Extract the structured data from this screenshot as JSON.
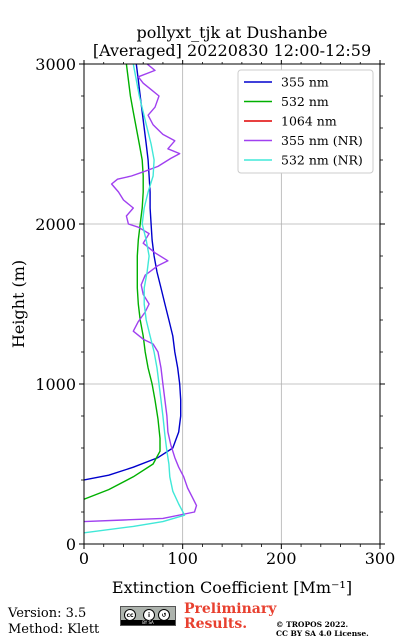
{
  "chart_data": {
    "type": "line",
    "title_lines": [
      "pollyxt_tjk at Dushanbe",
      "[Averaged] 20220830 12:00-12:59"
    ],
    "xlabel": "Extinction Coefficient [Mm⁻¹]",
    "ylabel": "Height (m)",
    "xlim": [
      0,
      300
    ],
    "ylim": [
      0,
      3000
    ],
    "xticks": [
      "0",
      "100",
      "200",
      "300"
    ],
    "yticks": [
      "0",
      "1000",
      "2000",
      "3000"
    ],
    "grid": true,
    "legend_position": "top-right",
    "series": [
      {
        "name": "355 nm",
        "color": "#0000cd",
        "points": [
          [
            0,
            400
          ],
          [
            25,
            430
          ],
          [
            50,
            480
          ],
          [
            75,
            540
          ],
          [
            90,
            600
          ],
          [
            96,
            700
          ],
          [
            98,
            800
          ],
          [
            98,
            900
          ],
          [
            97,
            1000
          ],
          [
            95,
            1100
          ],
          [
            92,
            1200
          ],
          [
            90,
            1300
          ],
          [
            86,
            1400
          ],
          [
            82,
            1500
          ],
          [
            78,
            1600
          ],
          [
            74,
            1700
          ],
          [
            71,
            1800
          ],
          [
            69,
            1900
          ],
          [
            68,
            2000
          ],
          [
            67,
            2100
          ],
          [
            67,
            2200
          ],
          [
            66,
            2300
          ],
          [
            65,
            2400
          ],
          [
            63,
            2500
          ],
          [
            61,
            2600
          ],
          [
            59,
            2700
          ],
          [
            57,
            2800
          ],
          [
            55,
            2900
          ],
          [
            53,
            3000
          ]
        ]
      },
      {
        "name": "532 nm",
        "color": "#00b000",
        "points": [
          [
            0,
            280
          ],
          [
            25,
            340
          ],
          [
            50,
            420
          ],
          [
            70,
            500
          ],
          [
            77,
            580
          ],
          [
            77,
            660
          ],
          [
            75,
            780
          ],
          [
            72,
            900
          ],
          [
            69,
            1000
          ],
          [
            65,
            1100
          ],
          [
            62,
            1200
          ],
          [
            60,
            1300
          ],
          [
            57,
            1400
          ],
          [
            55,
            1500
          ],
          [
            54,
            1600
          ],
          [
            54,
            1700
          ],
          [
            54,
            1800
          ],
          [
            55,
            1900
          ],
          [
            57,
            2000
          ],
          [
            59,
            2100
          ],
          [
            60,
            2200
          ],
          [
            60,
            2300
          ],
          [
            59,
            2400
          ],
          [
            56,
            2500
          ],
          [
            53,
            2600
          ],
          [
            50,
            2700
          ],
          [
            47,
            2800
          ],
          [
            45,
            2900
          ],
          [
            43,
            3000
          ]
        ]
      },
      {
        "name": "1064 nm",
        "color": "#e00000",
        "points": []
      },
      {
        "name": "355 nm (NR)",
        "color": "#a040f0",
        "points": [
          [
            0,
            140
          ],
          [
            40,
            150
          ],
          [
            80,
            160
          ],
          [
            112,
            200
          ],
          [
            114,
            240
          ],
          [
            110,
            290
          ],
          [
            105,
            350
          ],
          [
            101,
            420
          ],
          [
            96,
            480
          ],
          [
            92,
            540
          ],
          [
            88,
            620
          ],
          [
            85,
            700
          ],
          [
            84,
            800
          ],
          [
            82,
            900
          ],
          [
            80,
            1000
          ],
          [
            78,
            1100
          ],
          [
            75,
            1200
          ],
          [
            70,
            1250
          ],
          [
            60,
            1280
          ],
          [
            50,
            1330
          ],
          [
            55,
            1390
          ],
          [
            62,
            1450
          ],
          [
            66,
            1500
          ],
          [
            60,
            1560
          ],
          [
            58,
            1620
          ],
          [
            62,
            1680
          ],
          [
            75,
            1740
          ],
          [
            85,
            1770
          ],
          [
            72,
            1820
          ],
          [
            60,
            1880
          ],
          [
            66,
            1940
          ],
          [
            55,
            1980
          ],
          [
            45,
            2000
          ],
          [
            43,
            2050
          ],
          [
            50,
            2100
          ],
          [
            40,
            2150
          ],
          [
            35,
            2200
          ],
          [
            28,
            2250
          ],
          [
            34,
            2280
          ],
          [
            48,
            2300
          ],
          [
            62,
            2330
          ],
          [
            75,
            2360
          ],
          [
            88,
            2410
          ],
          [
            97,
            2440
          ],
          [
            85,
            2470
          ],
          [
            92,
            2520
          ],
          [
            80,
            2560
          ],
          [
            70,
            2620
          ],
          [
            65,
            2680
          ],
          [
            72,
            2730
          ],
          [
            76,
            2800
          ],
          [
            68,
            2840
          ],
          [
            60,
            2880
          ],
          [
            55,
            2920
          ],
          [
            72,
            2960
          ],
          [
            64,
            3000
          ]
        ]
      },
      {
        "name": "532 nm (NR)",
        "color": "#40e8d8",
        "points": [
          [
            0,
            70
          ],
          [
            50,
            110
          ],
          [
            80,
            140
          ],
          [
            102,
            180
          ],
          [
            96,
            250
          ],
          [
            90,
            330
          ],
          [
            87,
            420
          ],
          [
            86,
            500
          ],
          [
            84,
            580
          ],
          [
            82,
            680
          ],
          [
            80,
            800
          ],
          [
            78,
            900
          ],
          [
            76,
            1000
          ],
          [
            74,
            1100
          ],
          [
            71,
            1200
          ],
          [
            67,
            1300
          ],
          [
            63,
            1400
          ],
          [
            61,
            1500
          ],
          [
            61,
            1600
          ],
          [
            64,
            1700
          ],
          [
            66,
            1800
          ],
          [
            63,
            1900
          ],
          [
            59,
            2000
          ],
          [
            61,
            2100
          ],
          [
            65,
            2200
          ],
          [
            70,
            2300
          ],
          [
            71,
            2400
          ],
          [
            68,
            2500
          ],
          [
            64,
            2600
          ],
          [
            60,
            2700
          ],
          [
            56,
            2800
          ],
          [
            53,
            2900
          ],
          [
            50,
            3000
          ]
        ]
      }
    ]
  },
  "footer": {
    "version": "Version: 3.5",
    "method": "Method: Klett",
    "preliminary_line1": "Preliminary",
    "preliminary_line2": "Results.",
    "copyright_line1": "© TROPOS 2022.",
    "copyright_line2": "CC BY SA 4.0 License.",
    "cc_badge_text": "BY SA"
  }
}
